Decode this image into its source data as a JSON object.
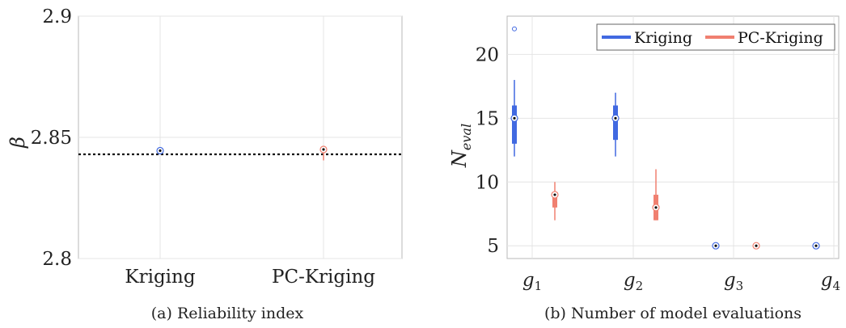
{
  "chart_data": [
    {
      "type": "box",
      "caption": "(a) Reliability index",
      "ylabel": "β",
      "ylim": [
        2.8,
        2.9
      ],
      "yticks": [
        "2.8",
        "2.85",
        "2.9"
      ],
      "categories": [
        "Kriging",
        "PC-Kriging"
      ],
      "grid": true,
      "reference_line": 2.843,
      "series": [
        {
          "category": "Kriging",
          "color": "#4169E1",
          "median": 2.8445,
          "q1": 2.844,
          "q3": 2.845,
          "whisker_low": 2.8435,
          "whisker_high": 2.8455
        },
        {
          "category": "PC-Kriging",
          "color": "#F08070",
          "median": 2.845,
          "q1": 2.844,
          "q3": 2.8455,
          "whisker_low": 2.8405,
          "whisker_high": 2.8465
        }
      ]
    },
    {
      "type": "box",
      "caption": "(b) Number of model evaluations",
      "ylabel_base": "N",
      "ylabel_sub": "eval",
      "ylim": [
        4,
        23
      ],
      "yticks": [
        "5",
        "10",
        "15",
        "20"
      ],
      "categories": [
        {
          "base": "g",
          "sub": "1"
        },
        {
          "base": "g",
          "sub": "2"
        },
        {
          "base": "g",
          "sub": "3"
        },
        {
          "base": "g",
          "sub": "4"
        }
      ],
      "grid": true,
      "legend": {
        "placement": "top-right",
        "items": [
          "Kriging",
          "PC-Kriging"
        ]
      },
      "series": [
        {
          "name": "Kriging",
          "color": "#4169E1",
          "boxes": [
            {
              "group": "g1",
              "median": 15,
              "q1": 13,
              "q3": 16,
              "whisker_low": 12,
              "whisker_high": 18,
              "outliers": [
                22
              ]
            },
            {
              "group": "g2",
              "median": 15,
              "q1": 13.3,
              "q3": 16,
              "whisker_low": 12,
              "whisker_high": 17,
              "outliers": []
            },
            {
              "group": "g3",
              "median": 5,
              "q1": 5,
              "q3": 5,
              "whisker_low": 5,
              "whisker_high": 5,
              "outliers": []
            },
            {
              "group": "g4",
              "median": 5,
              "q1": 5,
              "q3": 5,
              "whisker_low": 5,
              "whisker_high": 5,
              "outliers": []
            }
          ]
        },
        {
          "name": "PC-Kriging",
          "color": "#F08070",
          "boxes": [
            {
              "group": "g1",
              "median": 9,
              "q1": 8,
              "q3": 9,
              "whisker_low": 7,
              "whisker_high": 10,
              "outliers": []
            },
            {
              "group": "g2",
              "median": 8,
              "q1": 7,
              "q3": 9,
              "whisker_low": 7,
              "whisker_high": 11,
              "outliers": []
            },
            {
              "group": "g3",
              "median": 5,
              "q1": 5,
              "q3": 5,
              "whisker_low": 5,
              "whisker_high": 5,
              "outliers": []
            },
            {
              "group": "g4",
              "median": 5,
              "q1": 5,
              "q3": 5,
              "whisker_low": 5,
              "whisker_high": 5,
              "outliers": []
            }
          ]
        }
      ]
    }
  ]
}
